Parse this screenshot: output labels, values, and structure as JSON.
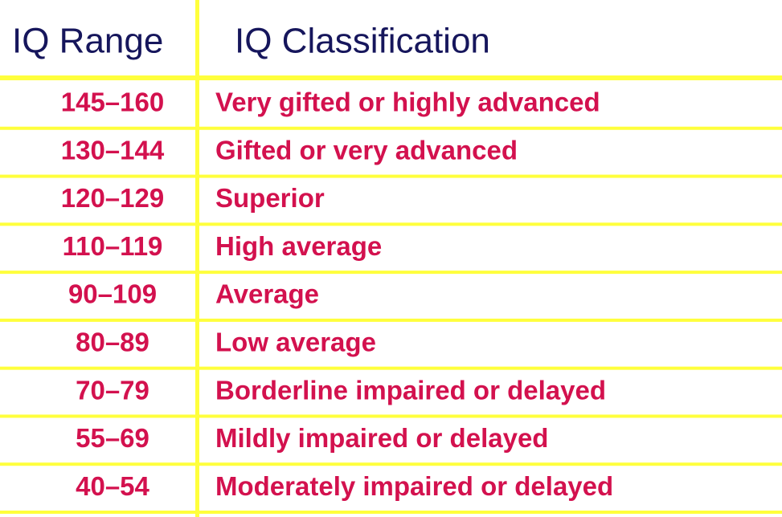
{
  "table": {
    "header": [
      "IQ Range",
      "IQ Classification"
    ],
    "rows": [
      [
        "145–160",
        "Very gifted or highly advanced"
      ],
      [
        "130–144",
        "Gifted or very advanced"
      ],
      [
        "120–129",
        "Superior"
      ],
      [
        "110–119",
        "High average"
      ],
      [
        "90–109",
        "Average"
      ],
      [
        "80–89",
        "Low average"
      ],
      [
        "70–79",
        "Borderline impaired or delayed"
      ],
      [
        "55–69",
        "Mildly impaired or delayed"
      ],
      [
        "40–54",
        "Moderately impaired or delayed"
      ]
    ]
  }
}
